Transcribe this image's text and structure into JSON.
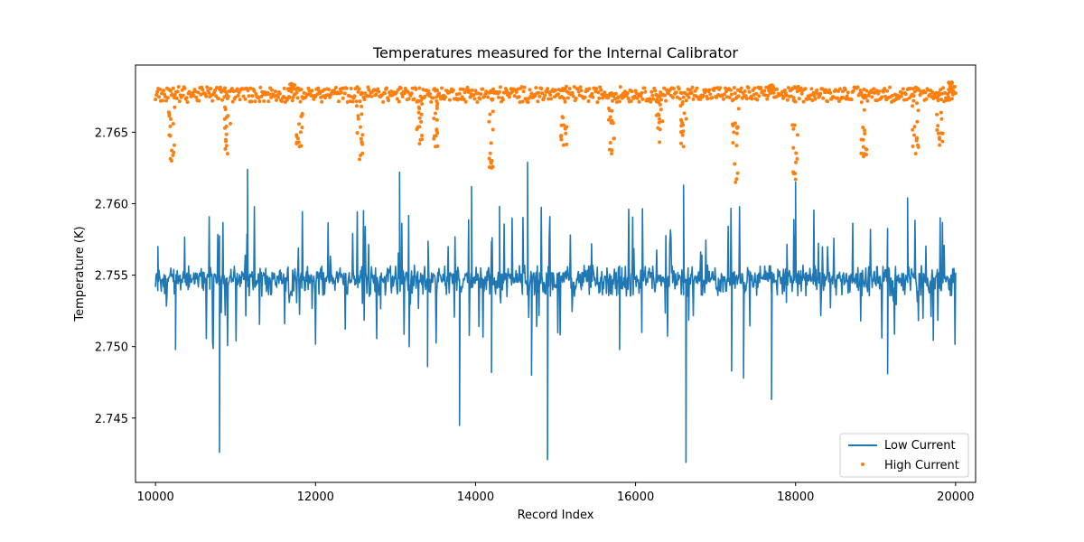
{
  "chart_data": {
    "type": "line",
    "title": "Temperatures measured for the Internal Calibrator",
    "xlabel": "Record Index",
    "ylabel": "Temperature (K)",
    "xlim": [
      9750,
      20250
    ],
    "ylim": [
      2.7405,
      2.7697
    ],
    "xticks": [
      10000,
      12000,
      14000,
      16000,
      18000,
      20000
    ],
    "yticks": [
      2.745,
      2.75,
      2.755,
      2.76,
      2.765
    ],
    "ytick_format": 3,
    "legend_position": "lower right",
    "x_range": [
      10000,
      20000
    ],
    "series": [
      {
        "name": "Low Current",
        "style": "line",
        "color": "#1f77b4",
        "base": 2.7548,
        "band": [
          2.7535,
          2.7557
        ],
        "spikes": [
          {
            "x": 10030,
            "y": 2.757
          },
          {
            "x": 10250,
            "y": 2.7498
          },
          {
            "x": 10800,
            "y": 2.7426
          },
          {
            "x": 11150,
            "y": 2.7624
          },
          {
            "x": 13050,
            "y": 2.7622
          },
          {
            "x": 13400,
            "y": 2.7486
          },
          {
            "x": 13800,
            "y": 2.7445
          },
          {
            "x": 13950,
            "y": 2.7612
          },
          {
            "x": 14200,
            "y": 2.7482
          },
          {
            "x": 14300,
            "y": 2.7598
          },
          {
            "x": 14650,
            "y": 2.7629
          },
          {
            "x": 14700,
            "y": 2.748
          },
          {
            "x": 14900,
            "y": 2.7421
          },
          {
            "x": 15800,
            "y": 2.7498
          },
          {
            "x": 16600,
            "y": 2.7613
          },
          {
            "x": 16630,
            "y": 2.7419
          },
          {
            "x": 17200,
            "y": 2.7483
          },
          {
            "x": 17350,
            "y": 2.7478
          },
          {
            "x": 17700,
            "y": 2.7463
          },
          {
            "x": 18000,
            "y": 2.7615
          },
          {
            "x": 19150,
            "y": 2.7481
          },
          {
            "x": 19400,
            "y": 2.7604
          }
        ]
      },
      {
        "name": "High Current",
        "style": "points",
        "color": "#ff7f0e",
        "base": 2.7677,
        "band": [
          2.7671,
          2.7682
        ],
        "spikes": [
          {
            "x": 10200,
            "y": 2.763
          },
          {
            "x": 10900,
            "y": 2.7635
          },
          {
            "x": 11700,
            "y": 2.7684
          },
          {
            "x": 11800,
            "y": 2.764
          },
          {
            "x": 12550,
            "y": 2.7631
          },
          {
            "x": 13300,
            "y": 2.7642
          },
          {
            "x": 13500,
            "y": 2.764
          },
          {
            "x": 14200,
            "y": 2.7625
          },
          {
            "x": 15100,
            "y": 2.7641
          },
          {
            "x": 15700,
            "y": 2.7635
          },
          {
            "x": 16300,
            "y": 2.7643
          },
          {
            "x": 16600,
            "y": 2.764
          },
          {
            "x": 17250,
            "y": 2.7615
          },
          {
            "x": 17700,
            "y": 2.7683
          },
          {
            "x": 18000,
            "y": 2.7617
          },
          {
            "x": 18850,
            "y": 2.7633
          },
          {
            "x": 19500,
            "y": 2.7635
          },
          {
            "x": 19800,
            "y": 2.7641
          },
          {
            "x": 19950,
            "y": 2.7685
          }
        ]
      }
    ]
  }
}
